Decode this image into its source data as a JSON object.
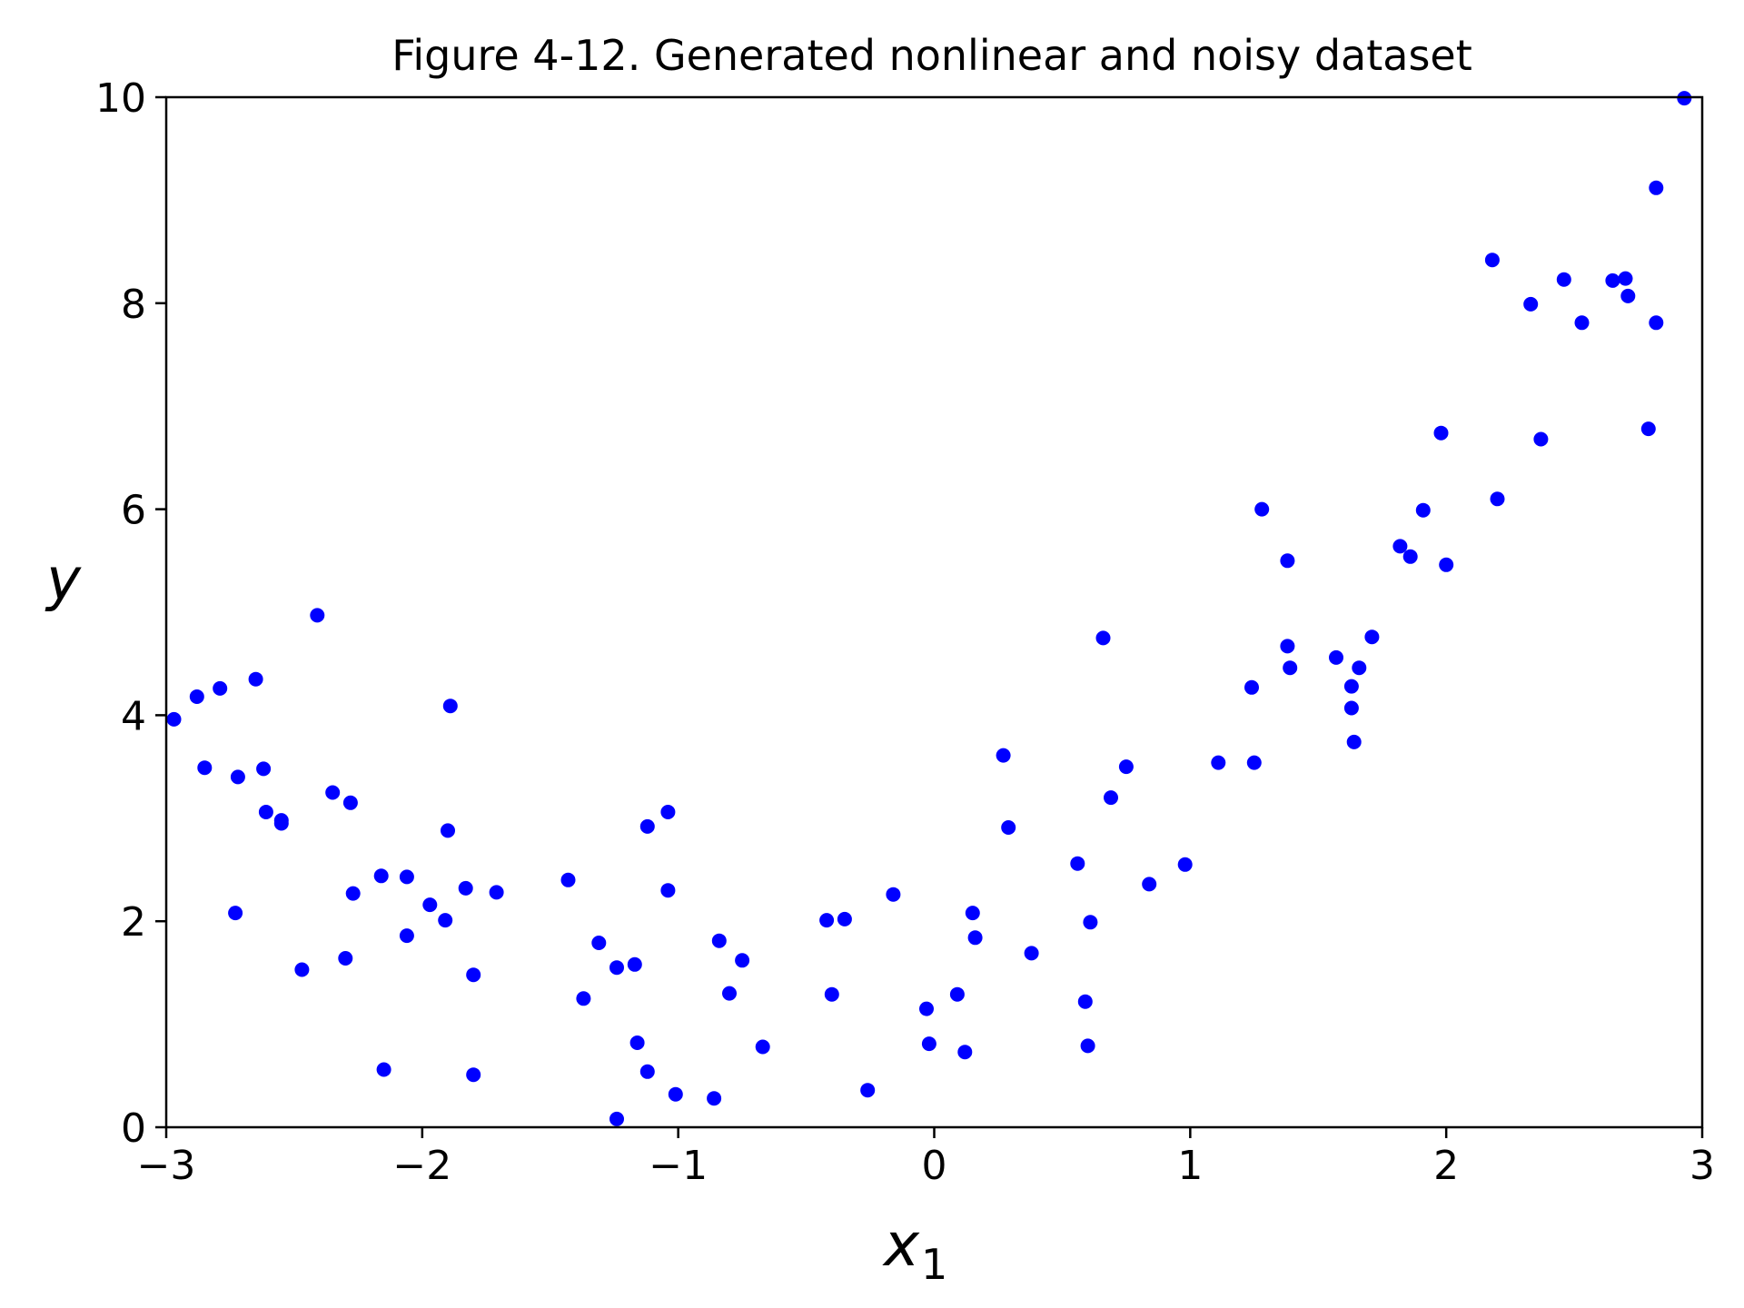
{
  "chart_data": {
    "type": "scatter",
    "title": "Figure 4-12. Generated nonlinear and noisy dataset",
    "xlabel": "x",
    "xlabel_subscript": "1",
    "ylabel": "y",
    "xlim": [
      -3,
      3
    ],
    "ylim": [
      0,
      10
    ],
    "x_tick_labels": [
      "−3",
      "−2",
      "−1",
      "0",
      "1",
      "2",
      "3"
    ],
    "y_tick_labels": [
      "0",
      "2",
      "4",
      "6",
      "8",
      "10"
    ],
    "grid": false,
    "legend": "none",
    "marker_color": "#0000ff",
    "series": [
      {
        "points": [
          [
            -2.97,
            3.96
          ],
          [
            -2.88,
            4.18
          ],
          [
            -2.85,
            3.49
          ],
          [
            -2.79,
            4.26
          ],
          [
            -2.72,
            3.4
          ],
          [
            -2.73,
            2.08
          ],
          [
            -2.65,
            4.35
          ],
          [
            -2.62,
            3.48
          ],
          [
            -2.61,
            3.06
          ],
          [
            -2.55,
            2.98
          ],
          [
            -2.55,
            2.95
          ],
          [
            -2.47,
            1.53
          ],
          [
            -2.41,
            4.97
          ],
          [
            -2.35,
            3.25
          ],
          [
            -2.3,
            1.64
          ],
          [
            -2.28,
            3.15
          ],
          [
            -2.27,
            2.27
          ],
          [
            -2.16,
            2.44
          ],
          [
            -2.15,
            0.56
          ],
          [
            -2.06,
            2.43
          ],
          [
            -2.06,
            1.86
          ],
          [
            -1.97,
            2.16
          ],
          [
            -1.91,
            2.01
          ],
          [
            -1.9,
            2.88
          ],
          [
            -1.89,
            4.09
          ],
          [
            -1.83,
            2.32
          ],
          [
            -1.8,
            1.48
          ],
          [
            -1.8,
            0.51
          ],
          [
            -1.71,
            2.28
          ],
          [
            -1.43,
            2.4
          ],
          [
            -1.37,
            1.25
          ],
          [
            -1.31,
            1.79
          ],
          [
            -1.24,
            1.55
          ],
          [
            -1.24,
            0.08
          ],
          [
            -1.17,
            1.58
          ],
          [
            -1.16,
            0.82
          ],
          [
            -1.12,
            2.92
          ],
          [
            -1.12,
            0.54
          ],
          [
            -1.04,
            3.06
          ],
          [
            -1.04,
            2.3
          ],
          [
            -1.01,
            0.32
          ],
          [
            -0.86,
            0.28
          ],
          [
            -0.84,
            1.81
          ],
          [
            -0.8,
            1.3
          ],
          [
            -0.75,
            1.62
          ],
          [
            -0.67,
            0.78
          ],
          [
            -0.42,
            2.01
          ],
          [
            -0.4,
            1.29
          ],
          [
            -0.35,
            2.02
          ],
          [
            -0.26,
            0.36
          ],
          [
            -0.16,
            2.26
          ],
          [
            -0.03,
            1.15
          ],
          [
            -0.02,
            0.81
          ],
          [
            0.09,
            1.29
          ],
          [
            0.12,
            0.73
          ],
          [
            0.15,
            2.08
          ],
          [
            0.16,
            1.84
          ],
          [
            0.27,
            3.61
          ],
          [
            0.29,
            2.91
          ],
          [
            0.38,
            1.69
          ],
          [
            0.56,
            2.56
          ],
          [
            0.59,
            1.22
          ],
          [
            0.6,
            0.79
          ],
          [
            0.61,
            1.99
          ],
          [
            0.66,
            4.75
          ],
          [
            0.69,
            3.2
          ],
          [
            0.75,
            3.5
          ],
          [
            0.84,
            2.36
          ],
          [
            0.98,
            2.55
          ],
          [
            1.11,
            3.54
          ],
          [
            1.24,
            4.27
          ],
          [
            1.25,
            3.54
          ],
          [
            1.28,
            6.0
          ],
          [
            1.38,
            5.5
          ],
          [
            1.38,
            4.67
          ],
          [
            1.39,
            4.46
          ],
          [
            1.57,
            4.56
          ],
          [
            1.63,
            4.28
          ],
          [
            1.63,
            4.07
          ],
          [
            1.64,
            3.74
          ],
          [
            1.66,
            4.46
          ],
          [
            1.71,
            4.76
          ],
          [
            1.82,
            5.64
          ],
          [
            1.86,
            5.54
          ],
          [
            1.91,
            5.99
          ],
          [
            1.98,
            6.74
          ],
          [
            2.0,
            5.46
          ],
          [
            2.18,
            8.42
          ],
          [
            2.2,
            6.1
          ],
          [
            2.33,
            7.99
          ],
          [
            2.37,
            6.68
          ],
          [
            2.46,
            8.23
          ],
          [
            2.53,
            7.81
          ],
          [
            2.65,
            8.22
          ],
          [
            2.7,
            8.24
          ],
          [
            2.71,
            8.07
          ],
          [
            2.79,
            6.78
          ],
          [
            2.82,
            9.12
          ],
          [
            2.82,
            7.81
          ],
          [
            2.93,
            9.99
          ]
        ]
      }
    ]
  }
}
